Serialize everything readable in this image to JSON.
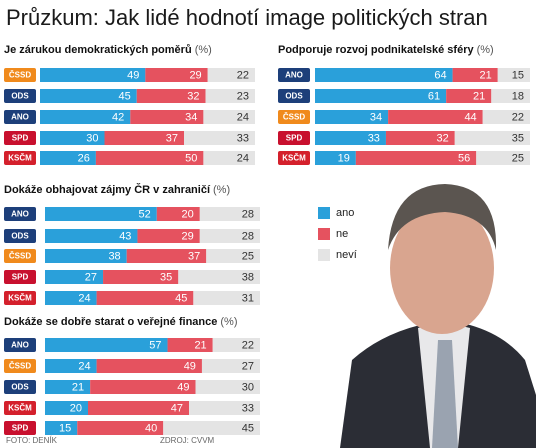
{
  "title": "Průzkum: Jak lidé hodnotí image politických stran",
  "photo_credit": "FOTO: DENÍK",
  "source": "ZDROJ: CVVM",
  "chart_data": [
    {
      "type": "stacked_bar",
      "title": "Je zárukou demokratických poměrů",
      "unit": "(%)",
      "categories": [
        "ČSSD",
        "ODS",
        "ANO",
        "SPD",
        "KSČM"
      ],
      "category_colors": [
        "#f08a1c",
        "#1d3f7a",
        "#1d3f7a",
        "#c8102e",
        "#d4202c"
      ],
      "xlim": [
        0,
        100
      ],
      "series": [
        {
          "name": "ano",
          "color": "#2aa0da",
          "values": [
            49,
            45,
            42,
            30,
            26
          ]
        },
        {
          "name": "ne",
          "color": "#e5525f",
          "values": [
            29,
            32,
            34,
            37,
            50
          ]
        },
        {
          "name": "neví",
          "color": "#e4e4e4",
          "values": [
            22,
            23,
            24,
            33,
            24
          ]
        }
      ]
    },
    {
      "type": "stacked_bar",
      "title": "Podporuje rozvoj podnikatelské sféry",
      "unit": "(%)",
      "categories": [
        "ANO",
        "ODS",
        "ČSSD",
        "SPD",
        "KSČM"
      ],
      "category_colors": [
        "#1d3f7a",
        "#1d3f7a",
        "#f08a1c",
        "#c8102e",
        "#d4202c"
      ],
      "xlim": [
        0,
        100
      ],
      "series": [
        {
          "name": "ano",
          "color": "#2aa0da",
          "values": [
            64,
            61,
            34,
            33,
            19
          ]
        },
        {
          "name": "ne",
          "color": "#e5525f",
          "values": [
            21,
            21,
            44,
            32,
            56
          ]
        },
        {
          "name": "neví",
          "color": "#e4e4e4",
          "values": [
            15,
            18,
            22,
            35,
            25
          ]
        }
      ]
    },
    {
      "type": "stacked_bar",
      "title": "Dokáže obhajovat zájmy ČR v zahraničí",
      "unit": "(%)",
      "categories": [
        "ANO",
        "ODS",
        "ČSSD",
        "SPD",
        "KSČM"
      ],
      "category_colors": [
        "#1d3f7a",
        "#1d3f7a",
        "#f08a1c",
        "#c8102e",
        "#d4202c"
      ],
      "xlim": [
        0,
        100
      ],
      "series": [
        {
          "name": "ano",
          "color": "#2aa0da",
          "values": [
            52,
            43,
            38,
            27,
            24
          ]
        },
        {
          "name": "ne",
          "color": "#e5525f",
          "values": [
            20,
            29,
            37,
            35,
            45
          ]
        },
        {
          "name": "neví",
          "color": "#e4e4e4",
          "values": [
            28,
            28,
            25,
            38,
            31
          ]
        }
      ]
    },
    {
      "type": "stacked_bar",
      "title": "Dokáže se dobře starat o veřejné finance",
      "unit": "(%)",
      "categories": [
        "ANO",
        "ČSSD",
        "ODS",
        "KSČM",
        "SPD"
      ],
      "category_colors": [
        "#1d3f7a",
        "#f08a1c",
        "#1d3f7a",
        "#d4202c",
        "#c8102e"
      ],
      "xlim": [
        0,
        100
      ],
      "series": [
        {
          "name": "ano",
          "color": "#2aa0da",
          "values": [
            57,
            24,
            21,
            20,
            15
          ]
        },
        {
          "name": "ne",
          "color": "#e5525f",
          "values": [
            21,
            49,
            49,
            47,
            40
          ]
        },
        {
          "name": "neví",
          "color": "#e4e4e4",
          "values": [
            22,
            27,
            30,
            33,
            45
          ]
        }
      ]
    }
  ]
}
